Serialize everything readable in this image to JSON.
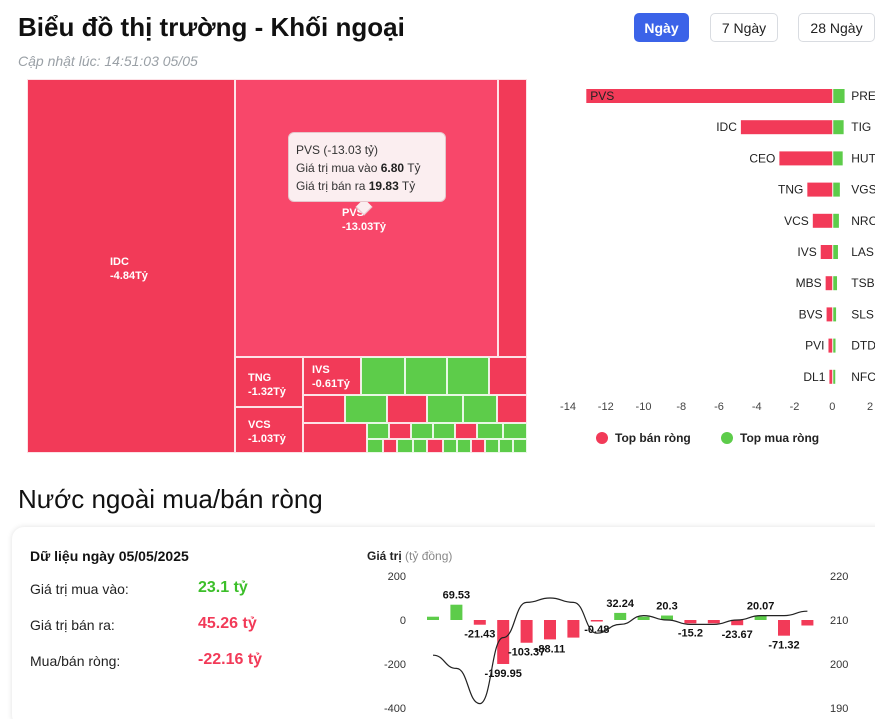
{
  "header": {
    "title": "Biểu đồ thị trường - Khối ngoại",
    "updated": "Cập nhật lúc: 14:51:03 05/05",
    "tabs": [
      {
        "label": "Ngày",
        "active": true
      },
      {
        "label": "7 Ngày",
        "active": false
      },
      {
        "label": "28 Ngày",
        "active": false
      }
    ]
  },
  "colors": {
    "sell": "#f23a58",
    "sell_light": "#f8476a",
    "buy": "#5dcc4a",
    "text": "#111111"
  },
  "treemap": {
    "cells": [
      {
        "label": "IDC",
        "value": "-4.84Tỷ"
      },
      {
        "label": "PVS",
        "value": "-13.03Tỷ"
      },
      {
        "label": "TNG",
        "value": "-1.32Tỷ"
      },
      {
        "label": "VCS",
        "value": "-1.03Tỷ"
      },
      {
        "label": "IVS",
        "value": "-0.61Tỷ"
      }
    ],
    "tooltip": {
      "line1": "PVS (-13.03 tỷ)",
      "buy_label": "Giá trị mua vào",
      "buy_value": "6.80",
      "sell_label": "Giá trị bán ra",
      "sell_value": "19.83",
      "unit": "Tỷ"
    }
  },
  "chart_data": [
    {
      "type": "bar",
      "orientation": "horizontal",
      "sellers": [
        {
          "name": "PVS",
          "value": -13.03
        },
        {
          "name": "IDC",
          "value": -4.84
        },
        {
          "name": "CEO",
          "value": -2.8
        },
        {
          "name": "TNG",
          "value": -1.32
        },
        {
          "name": "VCS",
          "value": -1.03
        },
        {
          "name": "IVS",
          "value": -0.61
        },
        {
          "name": "MBS",
          "value": -0.35
        },
        {
          "name": "BVS",
          "value": -0.3
        },
        {
          "name": "PVI",
          "value": -0.2
        },
        {
          "name": "DL1",
          "value": -0.15
        }
      ],
      "buyers": [
        {
          "name": "PRE",
          "value": 0.6
        },
        {
          "name": "TIG",
          "value": 0.55
        },
        {
          "name": "HUT",
          "value": 0.5
        },
        {
          "name": "VGS",
          "value": 0.35
        },
        {
          "name": "NRC",
          "value": 0.3
        },
        {
          "name": "LAS",
          "value": 0.25
        },
        {
          "name": "TSB",
          "value": 0.2
        },
        {
          "name": "SLS",
          "value": 0.15
        },
        {
          "name": "DTD",
          "value": 0.12
        },
        {
          "name": "NFC",
          "value": 0.08
        }
      ],
      "xlim": [
        -14,
        2
      ],
      "xticks": [
        "-14",
        "-12",
        "-10",
        "-8",
        "-6",
        "-4",
        "-2",
        "0",
        "2"
      ],
      "legend": [
        {
          "name": "Top bán ròng",
          "color": "#f23a58"
        },
        {
          "name": "Top mua ròng",
          "color": "#5dcc4a"
        }
      ],
      "legend_position": "bottom"
    },
    {
      "type": "bar",
      "title_main": "Giá trị",
      "title_sub": "(tỷ đồng)",
      "values": [
        15,
        69.53,
        -21.43,
        -199.95,
        -103.37,
        -88.11,
        -80,
        -0.48,
        32.24,
        15,
        20.3,
        -15.2,
        -15,
        -23.67,
        20.07,
        -71.32,
        -25
      ],
      "labels": [
        "",
        "69.53",
        "-21.43",
        "-199.95",
        "-103.37",
        "-88.11",
        "",
        "-0.48",
        "32.24",
        "",
        "20.3",
        "-15.2",
        "",
        "-23.67",
        "20.07",
        "-71.32",
        ""
      ],
      "ylim": [
        -400,
        200
      ],
      "yticks_left": [
        "200",
        "0",
        "-200",
        "-400"
      ],
      "line_ylim": [
        190,
        220
      ],
      "yticks_right": [
        "220",
        "210",
        "200",
        "190"
      ],
      "line": [
        202,
        199,
        191,
        206,
        214,
        215,
        214,
        207,
        209,
        211,
        210,
        209,
        209,
        210,
        211,
        211,
        212
      ],
      "grid": false
    }
  ],
  "summary": {
    "date": "Dữ liệu ngày 05/05/2025",
    "buy_label": "Giá trị mua vào:",
    "buy_value": "23.1 tỷ",
    "sell_label": "Giá trị bán ra:",
    "sell_value": "45.26 tỷ",
    "net_label": "Mua/bán ròng:",
    "net_value": "-22.16 tỷ"
  },
  "section2": {
    "title": "Nước ngoài mua/bán ròng"
  }
}
